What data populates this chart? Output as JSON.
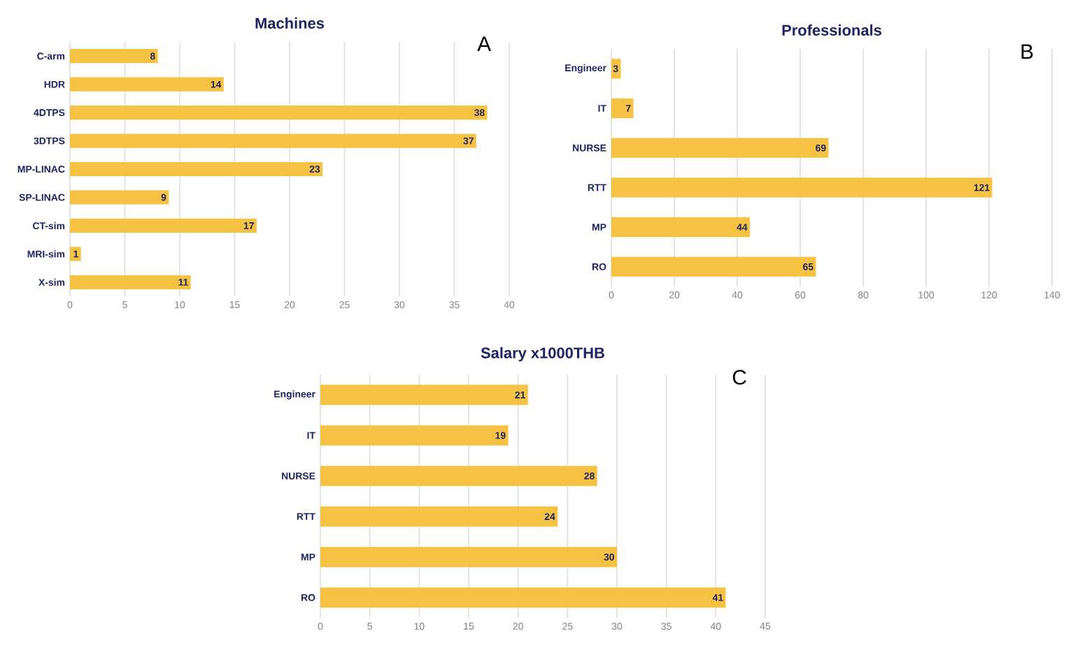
{
  "chart_data": [
    {
      "type": "bar",
      "orientation": "horizontal",
      "title": "Machines",
      "annotations": [
        "A"
      ],
      "categories": [
        "C-arm",
        "HDR",
        "4DTPS",
        "3DTPS",
        "MP-LINAC",
        "SP-LINAC",
        "CT-sim",
        "MRI-sim",
        "X-sim"
      ],
      "values": [
        8,
        14,
        38,
        37,
        23,
        9,
        17,
        1,
        11
      ],
      "color": "#f6c244",
      "data_labels": true,
      "xlim": [
        0,
        40
      ],
      "xticks": [
        0,
        5,
        10,
        15,
        20,
        25,
        30,
        35,
        40
      ],
      "grid": "x"
    },
    {
      "type": "bar",
      "orientation": "horizontal",
      "title": "Professionals",
      "annotations": [
        "B"
      ],
      "categories": [
        "Engineer",
        "IT",
        "NURSE",
        "RTT",
        "MP",
        "RO"
      ],
      "values": [
        3,
        7,
        69,
        121,
        44,
        65
      ],
      "color": "#f6c244",
      "data_labels": true,
      "xlim": [
        0,
        140
      ],
      "xticks": [
        0,
        20,
        40,
        60,
        80,
        100,
        120,
        140
      ],
      "grid": "x"
    },
    {
      "type": "bar",
      "orientation": "horizontal",
      "title": "Salary x1000THB",
      "annotations": [
        "C"
      ],
      "categories": [
        "Engineer",
        "IT",
        "NURSE",
        "RTT",
        "MP",
        "RO"
      ],
      "values": [
        21,
        19,
        28,
        24,
        30,
        41
      ],
      "color": "#f6c244",
      "data_labels": true,
      "xlim": [
        0,
        45
      ],
      "xticks": [
        0,
        5,
        10,
        15,
        20,
        25,
        30,
        35,
        40,
        45
      ],
      "grid": "x"
    }
  ]
}
